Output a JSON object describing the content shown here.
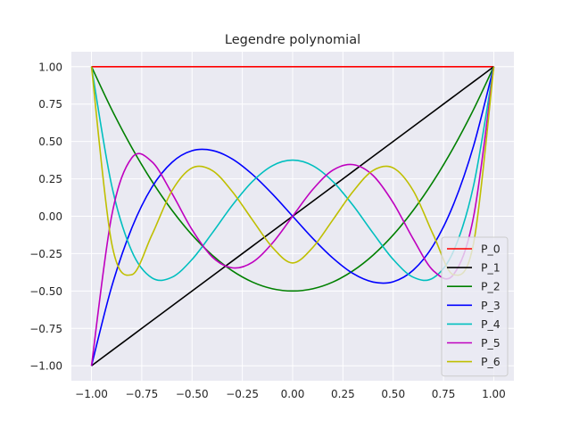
{
  "chart_data": {
    "type": "line",
    "title": "Legendre polynomial",
    "xlabel": "",
    "ylabel": "",
    "xlim": [
      -1.1,
      1.1
    ],
    "ylim": [
      -1.1,
      1.1
    ],
    "grid": true,
    "legend_position": "lower-right",
    "x_ticks": [
      "−1.00",
      "−0.75",
      "−0.50",
      "−0.25",
      "0.00",
      "0.25",
      "0.50",
      "0.75",
      "1.00"
    ],
    "x_tick_values": [
      -1.0,
      -0.75,
      -0.5,
      -0.25,
      0.0,
      0.25,
      0.5,
      0.75,
      1.0
    ],
    "y_ticks": [
      "−1.00",
      "−0.75",
      "−0.50",
      "−0.25",
      "0.00",
      "0.25",
      "0.50",
      "0.75",
      "1.00"
    ],
    "y_tick_values": [
      -1.0,
      -0.75,
      -0.5,
      -0.25,
      0.0,
      0.25,
      0.5,
      0.75,
      1.0
    ],
    "x": [
      -1.0,
      -0.9,
      -0.8,
      -0.7,
      -0.6,
      -0.5,
      -0.4,
      -0.3,
      -0.2,
      -0.1,
      0.0,
      0.1,
      0.2,
      0.3,
      0.4,
      0.5,
      0.6,
      0.7,
      0.8,
      0.9,
      1.0
    ],
    "series": [
      {
        "name": "P_0",
        "color": "#ff0000",
        "values": [
          1,
          1,
          1,
          1,
          1,
          1,
          1,
          1,
          1,
          1,
          1,
          1,
          1,
          1,
          1,
          1,
          1,
          1,
          1,
          1,
          1
        ]
      },
      {
        "name": "P_1",
        "color": "#000000",
        "values": [
          -1.0,
          -0.9,
          -0.8,
          -0.7,
          -0.6,
          -0.5,
          -0.4,
          -0.3,
          -0.2,
          -0.1,
          0.0,
          0.1,
          0.2,
          0.3,
          0.4,
          0.5,
          0.6,
          0.7,
          0.8,
          0.9,
          1.0
        ]
      },
      {
        "name": "P_2",
        "color": "#008000",
        "values": [
          1.0,
          0.715,
          0.46,
          0.235,
          0.04,
          -0.125,
          -0.26,
          -0.365,
          -0.44,
          -0.485,
          -0.5,
          -0.485,
          -0.44,
          -0.365,
          -0.26,
          -0.125,
          0.04,
          0.235,
          0.46,
          0.715,
          1.0
        ]
      },
      {
        "name": "P_3",
        "color": "#0000ff",
        "values": [
          -1.0,
          -0.473,
          -0.08,
          0.193,
          0.36,
          0.438,
          0.44,
          0.383,
          0.28,
          0.148,
          0.0,
          -0.148,
          -0.28,
          -0.383,
          -0.44,
          -0.438,
          -0.36,
          -0.193,
          0.08,
          0.473,
          1.0
        ]
      },
      {
        "name": "P_4",
        "color": "#00bfbf",
        "values": [
          1.0,
          0.208,
          -0.233,
          -0.412,
          -0.408,
          -0.289,
          -0.113,
          0.073,
          0.232,
          0.338,
          0.375,
          0.338,
          0.232,
          0.073,
          -0.113,
          -0.289,
          -0.408,
          -0.412,
          -0.233,
          0.208,
          1.0
        ]
      },
      {
        "name": "P_5",
        "color": "#bf00bf",
        "values": [
          -1.0,
          0.0,
          0.39,
          0.365,
          0.153,
          -0.09,
          -0.272,
          -0.345,
          -0.308,
          -0.179,
          0.0,
          0.179,
          0.308,
          0.345,
          0.272,
          0.09,
          -0.153,
          -0.365,
          -0.39,
          0.0,
          1.0
        ]
      },
      {
        "name": "P_6",
        "color": "#bfbf00",
        "values": [
          1.0,
          -0.178,
          -0.391,
          -0.126,
          0.17,
          0.323,
          0.306,
          0.165,
          -0.024,
          -0.209,
          -0.3125,
          -0.209,
          -0.024,
          0.165,
          0.306,
          0.323,
          0.17,
          -0.126,
          -0.391,
          -0.178,
          1.0
        ]
      }
    ]
  }
}
